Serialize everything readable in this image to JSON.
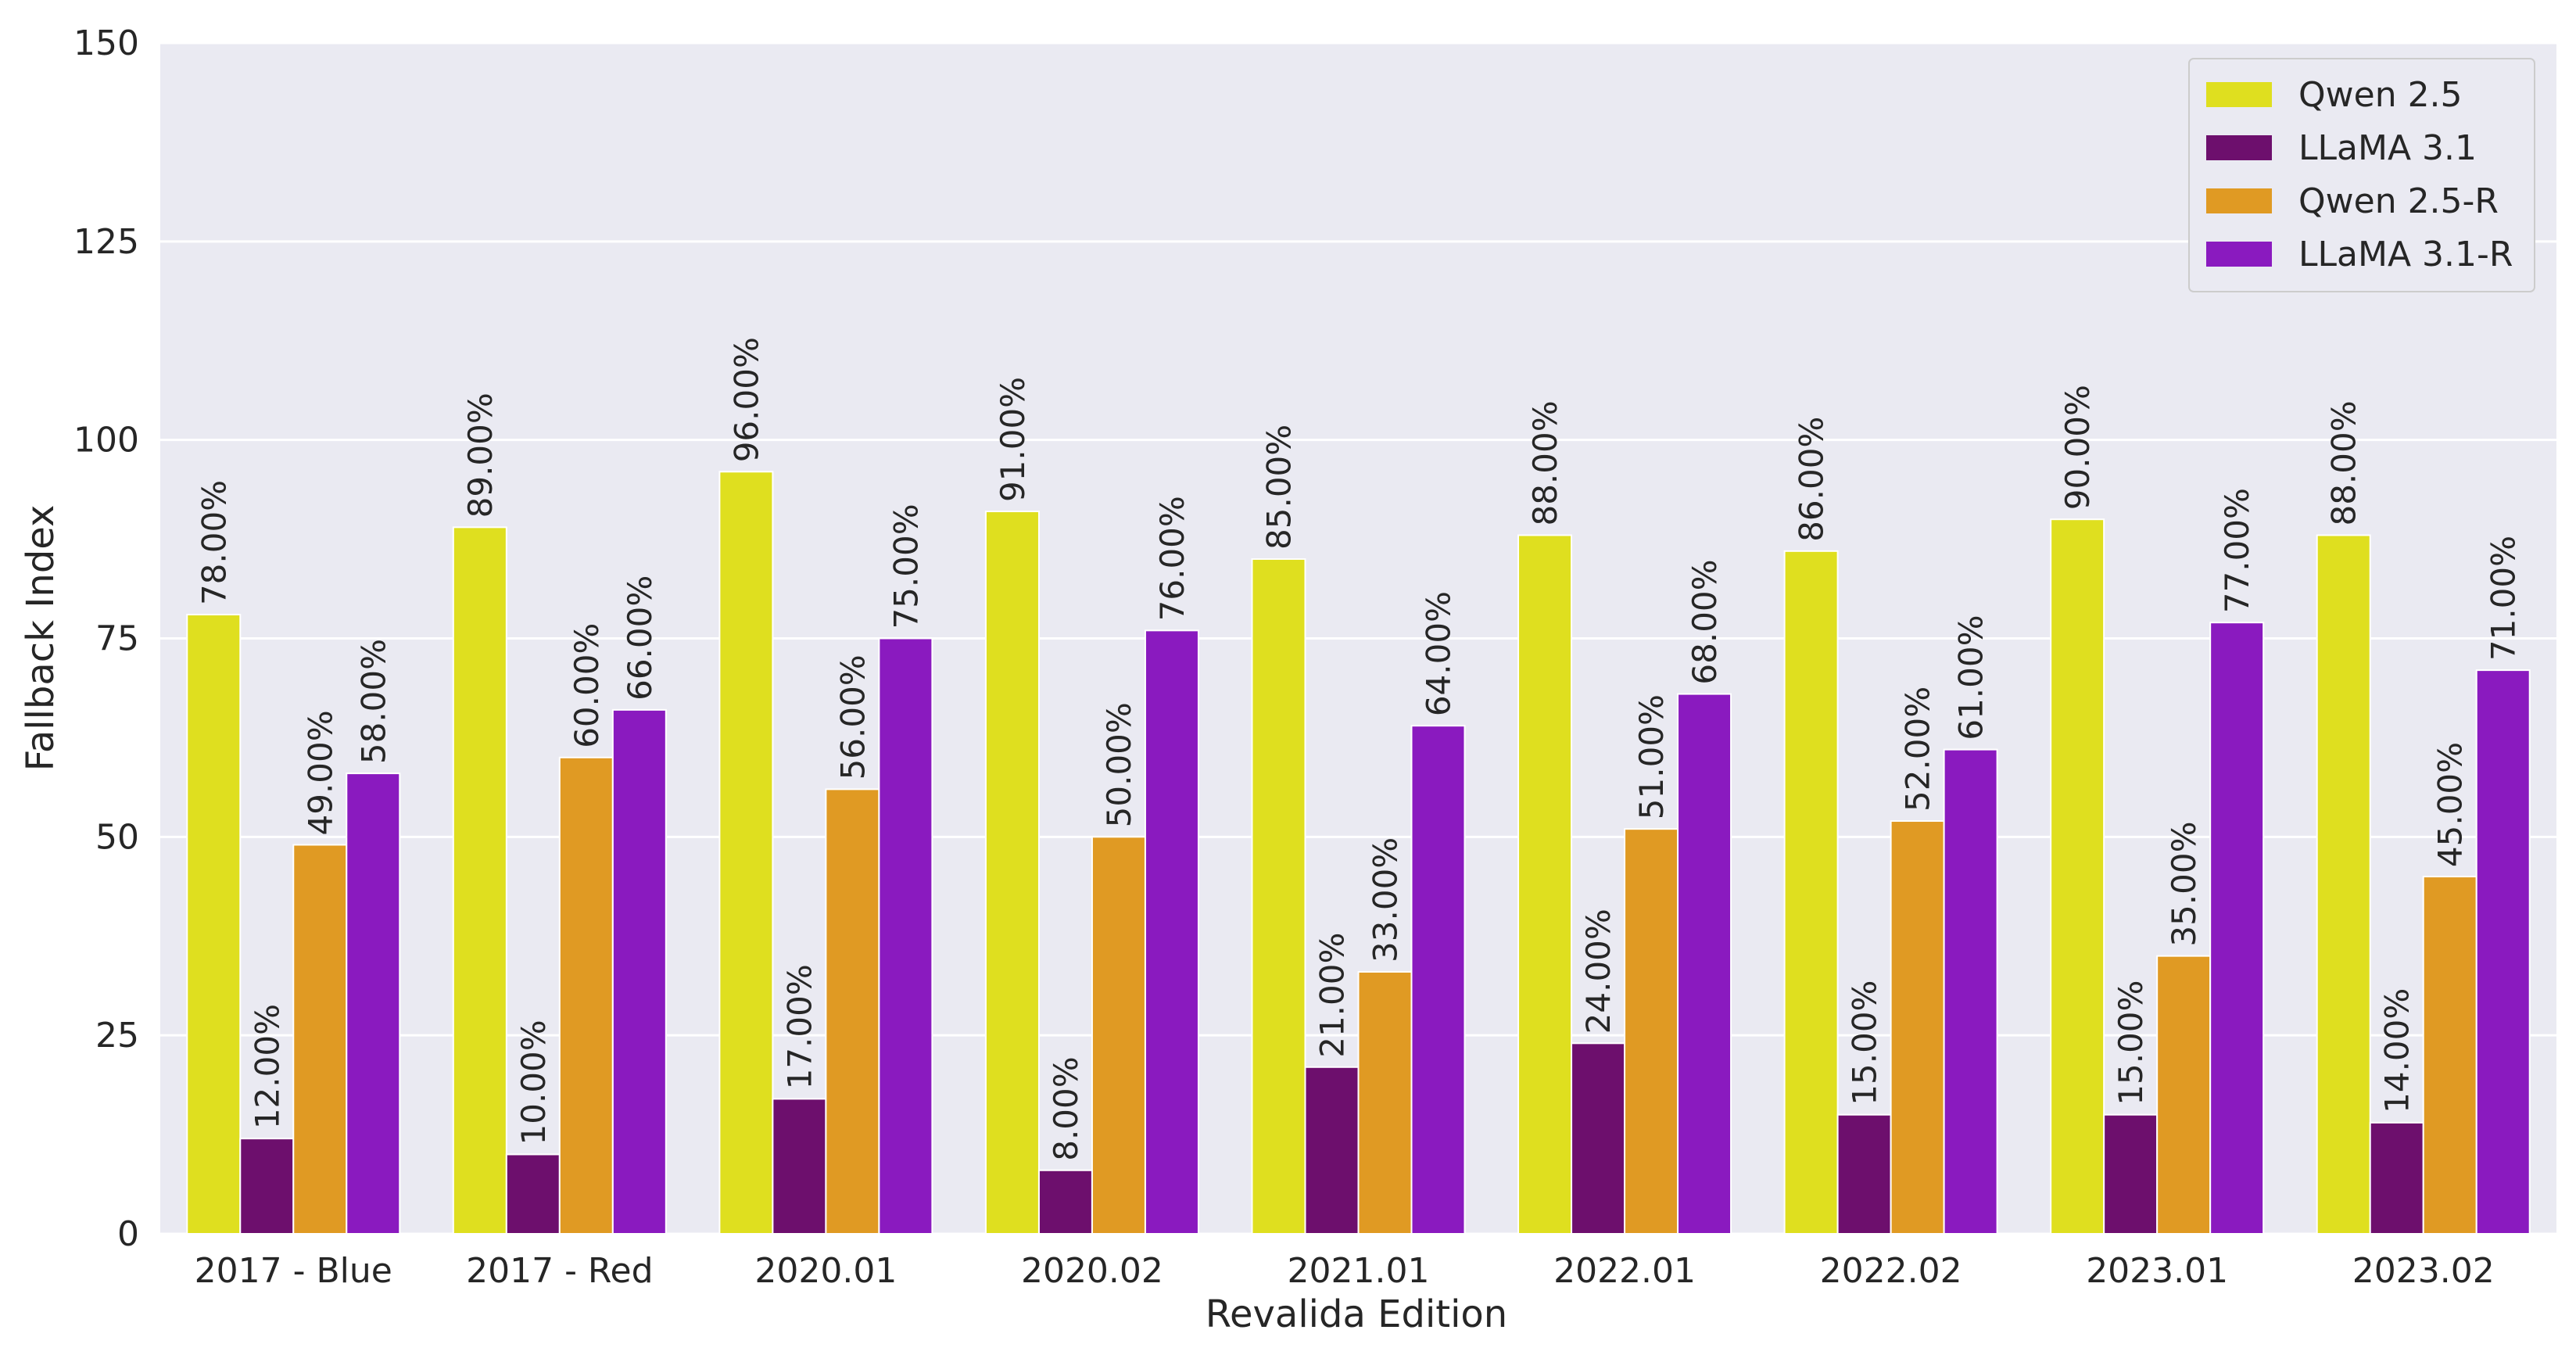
{
  "chart_data": {
    "type": "bar",
    "title": "",
    "xlabel": "Revalida Edition",
    "ylabel": "Fallback Index",
    "ylim": [
      0,
      150
    ],
    "yticks": [
      0,
      25,
      50,
      75,
      100,
      125,
      150
    ],
    "grid": true,
    "legend_position": "top-right",
    "categories": [
      "2017 - Blue",
      "2017 - Red",
      "2020.01",
      "2020.02",
      "2021.01",
      "2022.01",
      "2022.02",
      "2023.01",
      "2023.02"
    ],
    "series": [
      {
        "name": "Qwen 2.5",
        "color": "#dfdf1f",
        "values": [
          78,
          89,
          96,
          91,
          85,
          88,
          86,
          90,
          88
        ],
        "labels": [
          "78.00%",
          "89.00%",
          "96.00%",
          "91.00%",
          "85.00%",
          "88.00%",
          "86.00%",
          "90.00%",
          "88.00%"
        ]
      },
      {
        "name": "LLaMA 3.1",
        "color": "#6d0f6d",
        "values": [
          12,
          10,
          17,
          8,
          21,
          24,
          15,
          15,
          14
        ],
        "labels": [
          "12.00%",
          "10.00%",
          "17.00%",
          "8.00%",
          "21.00%",
          "24.00%",
          "15.00%",
          "15.00%",
          "14.00%"
        ]
      },
      {
        "name": "Qwen 2.5-R",
        "color": "#e09a23",
        "values": [
          49,
          60,
          56,
          50,
          33,
          51,
          52,
          35,
          45
        ],
        "labels": [
          "49.00%",
          "60.00%",
          "56.00%",
          "50.00%",
          "33.00%",
          "51.00%",
          "52.00%",
          "35.00%",
          "45.00%"
        ]
      },
      {
        "name": "LLaMA 3.1-R",
        "color": "#8a1abf",
        "values": [
          58,
          66,
          75,
          76,
          64,
          68,
          61,
          77,
          71
        ],
        "labels": [
          "58.00%",
          "66.00%",
          "75.00%",
          "76.00%",
          "64.00%",
          "68.00%",
          "61.00%",
          "77.00%",
          "71.00%"
        ]
      }
    ]
  }
}
